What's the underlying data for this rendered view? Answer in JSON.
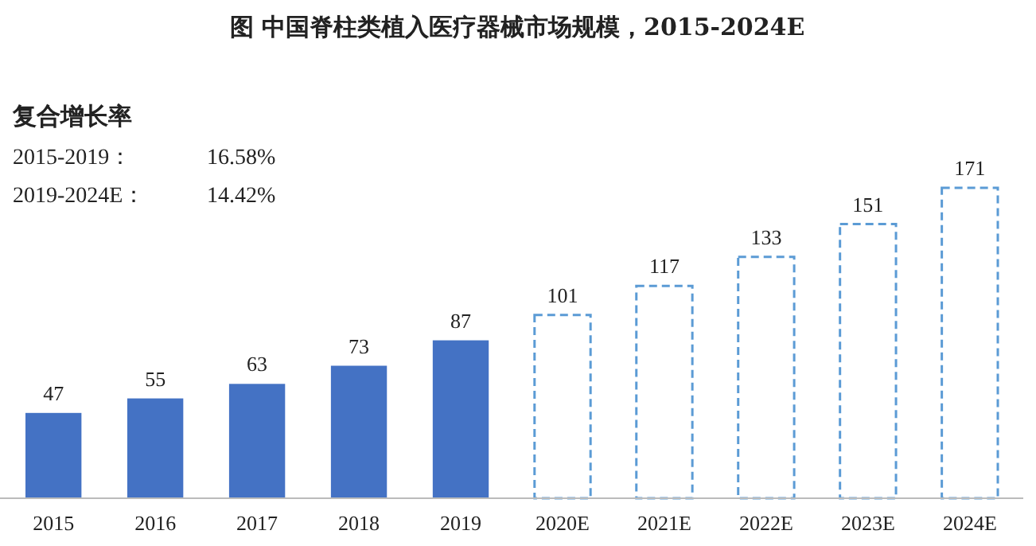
{
  "chart_data": {
    "type": "bar",
    "title": "图  中国脊柱类植入医疗器械市场规模，2015-2024E",
    "categories": [
      "2015",
      "2016",
      "2017",
      "2018",
      "2019",
      "2020E",
      "2021E",
      "2022E",
      "2023E",
      "2024E"
    ],
    "stacked": true,
    "series": [
      {
        "color": "#4472c4",
        "values": [
          47,
          55,
          63,
          73,
          87,
          null,
          null,
          null,
          null,
          null
        ]
      },
      {
        "color": "#5b9bd5",
        "line_style": "dashed",
        "values": [
          null,
          null,
          null,
          null,
          null,
          101,
          117,
          133,
          151,
          171
        ]
      }
    ],
    "data_labels": true,
    "annotations": [
      "复合增长率",
      "2015-2019：",
      "16.58%",
      "2019-2024E：",
      "14.42%"
    ]
  }
}
